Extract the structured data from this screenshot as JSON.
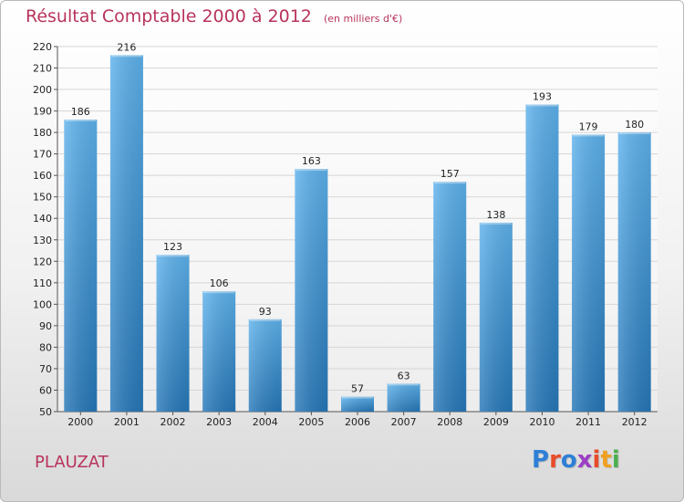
{
  "header": {
    "title": "Résultat Comptable 2000 à 2012",
    "subtitle": "(en milliers d'€)"
  },
  "footer": {
    "location": "PLAUZAT",
    "logo_text": "Proxiti"
  },
  "colors": {
    "bar_light": "#5eb2ec",
    "bar_dark": "#2677b8",
    "title": "#b8345c",
    "logo": [
      "#2e7fd6",
      "#e84c2b",
      "#2e7fd6",
      "#9b3fc4",
      "#e84c2b",
      "#f0a020",
      "#4caf50"
    ]
  },
  "chart_data": {
    "type": "bar",
    "categories": [
      "2000",
      "2001",
      "2002",
      "2003",
      "2004",
      "2005",
      "2006",
      "2007",
      "2008",
      "2009",
      "2010",
      "2011",
      "2012"
    ],
    "values": [
      186,
      216,
      123,
      106,
      93,
      163,
      57,
      63,
      157,
      138,
      193,
      179,
      180
    ],
    "title": "Résultat Comptable 2000 à 2012",
    "subtitle": "(en milliers d'€)",
    "xlabel": "",
    "ylabel": "",
    "ylim": [
      50,
      220
    ],
    "yticks": [
      50,
      60,
      70,
      80,
      90,
      100,
      110,
      120,
      130,
      140,
      150,
      160,
      170,
      180,
      190,
      200,
      210,
      220
    ],
    "grid": true,
    "legend": "none"
  }
}
